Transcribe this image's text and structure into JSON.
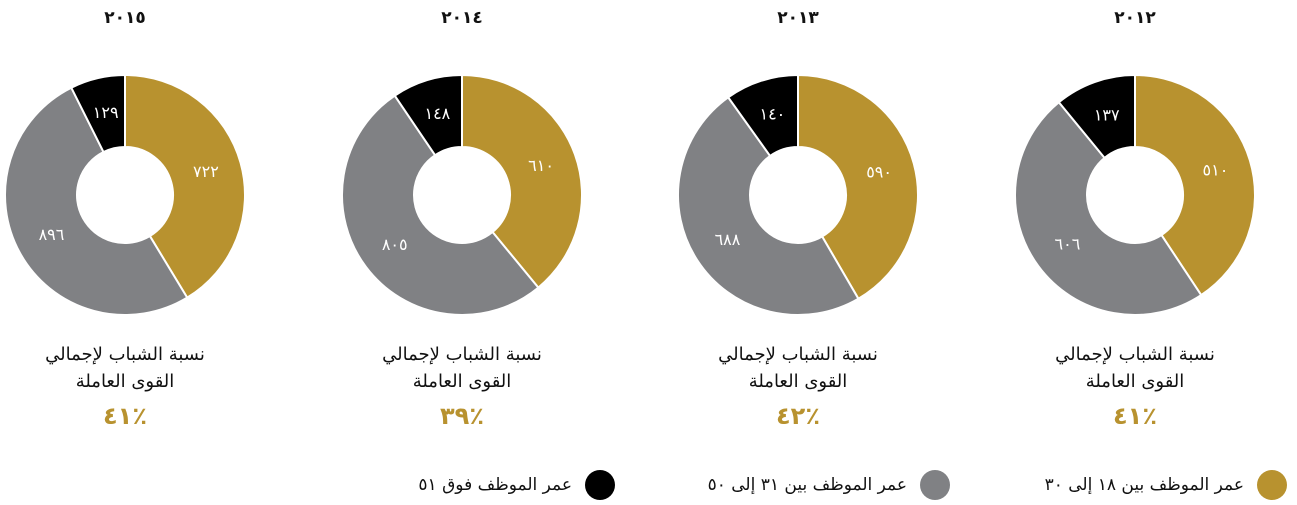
{
  "legend": [
    {
      "name": "عمر الموظف بين ١٨ إلى ٣٠",
      "color": "#b8922f"
    },
    {
      "name": "عمر الموظف بين ٣١ إلى ٥٠",
      "color": "#808184"
    },
    {
      "name": "عمر الموظف فوق ٥١",
      "color": "#000000"
    }
  ],
  "chart_data": [
    {
      "type": "donut",
      "title": "٢٠١٢",
      "values": [
        510,
        606,
        137
      ],
      "value_labels": [
        "٥١٠",
        "٦٠٦",
        "١٣٧"
      ],
      "caption": [
        "نسبة الشباب لإجمالي",
        "القوى العاملة"
      ],
      "percent": 41,
      "percent_label": "٪٤١"
    },
    {
      "type": "donut",
      "title": "٢٠١٣",
      "values": [
        590,
        688,
        140
      ],
      "value_labels": [
        "٥٩٠",
        "٦٨٨",
        "١٤٠"
      ],
      "caption": [
        "نسبة الشباب لإجمالي",
        "القوى العاملة"
      ],
      "percent": 42,
      "percent_label": "٪٤٢"
    },
    {
      "type": "donut",
      "title": "٢٠١٤",
      "values": [
        610,
        805,
        148
      ],
      "value_labels": [
        "٦١٠",
        "٨٠٥",
        "١٤٨"
      ],
      "caption": [
        "نسبة الشباب لإجمالي",
        "القوى العاملة"
      ],
      "percent": 39,
      "percent_label": "٪٣٩"
    },
    {
      "type": "donut",
      "title": "٢٠١٥",
      "values": [
        722,
        896,
        129
      ],
      "value_labels": [
        "٧٢٢",
        "٨٩٦",
        "١٢٩"
      ],
      "caption": [
        "نسبة الشباب لإجمالي",
        "القوى العاملة"
      ],
      "percent": 41,
      "percent_label": "٪٤١"
    }
  ]
}
